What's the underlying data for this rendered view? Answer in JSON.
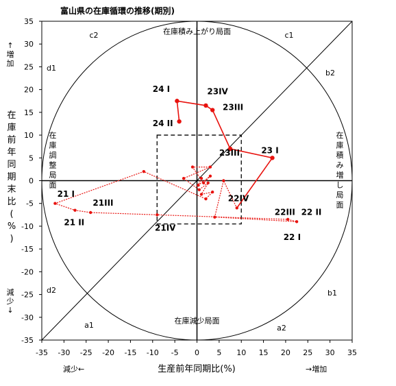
{
  "chart_data": {
    "type": "line",
    "title": "富山県の在庫循環の推移(期別)",
    "xlabel": "生産前年同期比(%)",
    "ylabel": "在庫前年同期末比(%)",
    "xlim": [
      -35,
      35
    ],
    "ylim": [
      -35,
      35
    ],
    "xticks": [
      "-35",
      "-30",
      "-25",
      "-20",
      "-15",
      "-10",
      "-5",
      "0",
      "5",
      "10",
      "15",
      "20",
      "25",
      "30",
      "35"
    ],
    "yticks": [
      "35",
      "30",
      "25",
      "20",
      "15",
      "10",
      "5",
      "0",
      "-5",
      "-10",
      "-15",
      "-20",
      "-25",
      "-30",
      "-35"
    ],
    "x_low_label": "減少←",
    "x_high_label": "→増加",
    "y_high_label": "↑増加",
    "y_low_label": "減少↓",
    "regions": {
      "top": "在庫積み上がり局面",
      "bottom": "在庫減少局面",
      "left": "在庫調整局面",
      "right": "在庫積み増し局面"
    },
    "zone_labels": [
      "c1",
      "c2",
      "d1",
      "d2",
      "a1",
      "a2",
      "b1",
      "b2"
    ],
    "series": [
      {
        "points": [
          {
            "x": 1.0,
            "y": 0.5
          },
          {
            "x": 0.3,
            "y": -1.0
          },
          {
            "x": 3.0,
            "y": 1.0
          },
          {
            "x": 1.5,
            "y": -0.5
          },
          {
            "x": -1.0,
            "y": 3.0
          },
          {
            "x": 3.0,
            "y": 3.0
          },
          {
            "x": -3.0,
            "y": 0.5
          },
          {
            "x": 0.5,
            "y": -2.0
          },
          {
            "x": 2.5,
            "y": -0.5
          },
          {
            "x": 1.0,
            "y": -3.0
          },
          {
            "x": 3.5,
            "y": -2.5
          },
          {
            "x": 2.0,
            "y": -4.0
          },
          {
            "x": -12.0,
            "y": 2.0,
            "label": "21 I"
          },
          {
            "x": -32.0,
            "y": -5.0,
            "label": "21 I"
          },
          {
            "x": -27.5,
            "y": -6.5,
            "label": "21 II"
          },
          {
            "x": -24.0,
            "y": -7.0,
            "label": "21 III"
          },
          {
            "x": -9.0,
            "y": -7.5,
            "label": "21 IV"
          },
          {
            "x": 20.5,
            "y": -8.5,
            "label": "22 III"
          },
          {
            "x": 22.5,
            "y": -9.0,
            "label": "22 II"
          },
          {
            "x": 4.0,
            "y": -8.0,
            "label": "22 I"
          },
          {
            "x": 6.0,
            "y": 0.0
          },
          {
            "x": 9.0,
            "y": -6.0,
            "label": "22 IV"
          },
          {
            "x": 17.0,
            "y": 5.0,
            "label": "23 I"
          },
          {
            "x": 7.5,
            "y": 7.0,
            "label": "23 II"
          },
          {
            "x": 3.5,
            "y": 15.5,
            "label": "23 III"
          },
          {
            "x": 2.0,
            "y": 16.5,
            "label": "23 IV"
          },
          {
            "x": -4.5,
            "y": 17.5,
            "label": "24 I"
          },
          {
            "x": -4.0,
            "y": 13.0,
            "label": "24 II"
          }
        ]
      }
    ],
    "point_labels": [
      {
        "text": "24 I",
        "x": -10,
        "y": 19.5
      },
      {
        "text": "23IV",
        "x": 2.3,
        "y": 19.0
      },
      {
        "text": "23III",
        "x": 5.8,
        "y": 15.5
      },
      {
        "text": "24 II",
        "x": -10,
        "y": 12.0
      },
      {
        "text": "23III",
        "x": 5.0,
        "y": 5.5
      },
      {
        "text": "23 I",
        "x": 14.5,
        "y": 6.0
      },
      {
        "text": "22IV",
        "x": 7.0,
        "y": -4.5
      },
      {
        "text": "22III",
        "x": 17.5,
        "y": -7.5
      },
      {
        "text": "22 II",
        "x": 23.5,
        "y": -7.5
      },
      {
        "text": "22 I",
        "x": 19.5,
        "y": -13.0
      },
      {
        "text": "21 I",
        "x": -31.5,
        "y": -3.5
      },
      {
        "text": "21III",
        "x": -23.5,
        "y": -5.5
      },
      {
        "text": "21 II",
        "x": -30.0,
        "y": -9.8
      },
      {
        "text": "21IV",
        "x": -9.5,
        "y": -11.0
      }
    ],
    "grid": false,
    "legend": "none",
    "colors": {
      "series": "#e8130f",
      "axes": "#000000"
    }
  }
}
